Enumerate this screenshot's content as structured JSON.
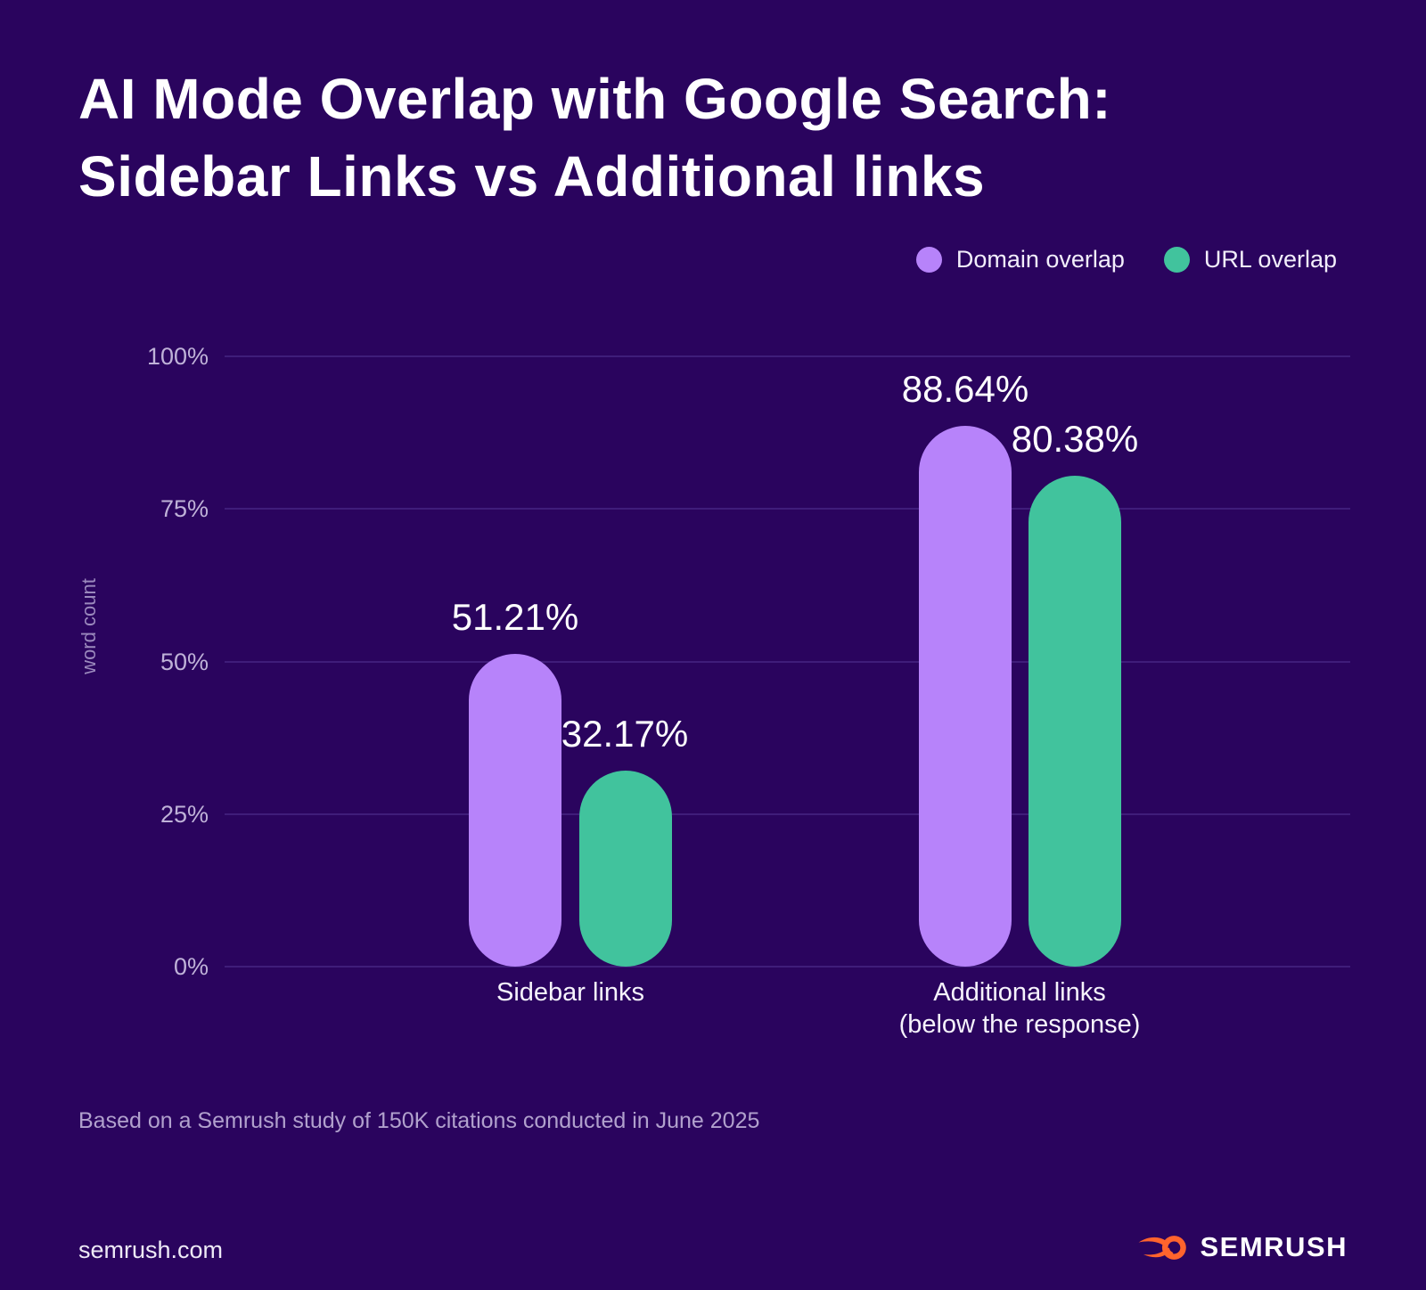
{
  "page": {
    "background": "#2a045e"
  },
  "header": {
    "title_line1": "AI Mode Overlap with Google Search:",
    "title_line2": "Sidebar Links vs Additional links"
  },
  "legend": {
    "items": [
      {
        "label": "Domain overlap",
        "color": "#b783fa"
      },
      {
        "label": "URL overlap",
        "color": "#41c39d"
      }
    ]
  },
  "chart_data": {
    "type": "bar",
    "title": "AI Mode Overlap with Google Search: Sidebar Links vs Additional links",
    "categories": [
      "Sidebar links",
      "Additional links (below the response)"
    ],
    "series": [
      {
        "name": "Domain overlap",
        "color": "#b783fa",
        "values": [
          51.21,
          88.64
        ],
        "value_labels": [
          "51.21%",
          "88.64%"
        ]
      },
      {
        "name": "URL overlap",
        "color": "#41c39d",
        "values": [
          32.17,
          80.38
        ],
        "value_labels": [
          "32.17%",
          "80.38%"
        ]
      }
    ],
    "ylabel": "word count",
    "ylim": [
      0,
      100
    ],
    "yticks": [
      {
        "value": 0,
        "label": "0%"
      },
      {
        "value": 25,
        "label": "25%"
      },
      {
        "value": 50,
        "label": "50%"
      },
      {
        "value": 75,
        "label": "75%"
      },
      {
        "value": 100,
        "label": "100%"
      }
    ],
    "grid": true,
    "legend_position": "top-right"
  },
  "x_axis": {
    "group1_label": "Sidebar links",
    "group2_label_line1": "Additional links",
    "group2_label_line2": "(below the response)"
  },
  "footnote": "Based on a Semrush study of 150K citations conducted in June 2025",
  "footer": {
    "site": "semrush.com",
    "logo_text": "SEMRUSH",
    "logo_color": "#ff642d"
  }
}
